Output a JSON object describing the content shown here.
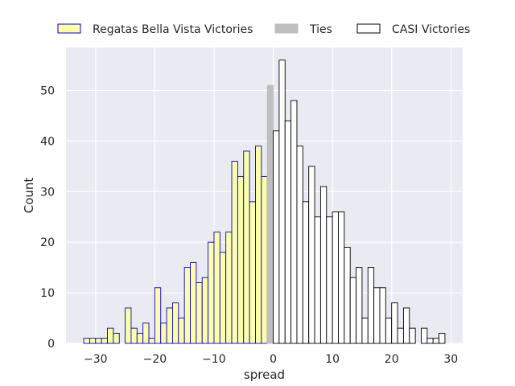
{
  "chart_data": {
    "type": "bar",
    "title": "",
    "xlabel": "spread",
    "ylabel": "Count",
    "xlim": [
      -35,
      32
    ],
    "ylim": [
      0,
      58.5
    ],
    "xticks": [
      -30,
      -20,
      -10,
      0,
      10,
      20,
      30
    ],
    "yticks": [
      0,
      10,
      20,
      30,
      40,
      50
    ],
    "grid": true,
    "bin_width": 1,
    "legend_position": "top-center",
    "series": [
      {
        "name": "Regatas Bella Vista Victories",
        "color": "#ffffaa",
        "edge_color": "#0000cc",
        "bins": [
          {
            "x": -32,
            "count": 1
          },
          {
            "x": -31,
            "count": 1
          },
          {
            "x": -30,
            "count": 1
          },
          {
            "x": -29,
            "count": 1
          },
          {
            "x": -28,
            "count": 3
          },
          {
            "x": -27,
            "count": 2
          },
          {
            "x": -26,
            "count": 0
          },
          {
            "x": -25,
            "count": 7
          },
          {
            "x": -24,
            "count": 3
          },
          {
            "x": -23,
            "count": 2
          },
          {
            "x": -22,
            "count": 4
          },
          {
            "x": -21,
            "count": 1
          },
          {
            "x": -20,
            "count": 11
          },
          {
            "x": -19,
            "count": 4
          },
          {
            "x": -18,
            "count": 7
          },
          {
            "x": -17,
            "count": 8
          },
          {
            "x": -16,
            "count": 5
          },
          {
            "x": -15,
            "count": 15
          },
          {
            "x": -14,
            "count": 16
          },
          {
            "x": -13,
            "count": 12
          },
          {
            "x": -12,
            "count": 13
          },
          {
            "x": -11,
            "count": 20
          },
          {
            "x": -10,
            "count": 22
          },
          {
            "x": -9,
            "count": 18
          },
          {
            "x": -8,
            "count": 22
          },
          {
            "x": -7,
            "count": 36
          },
          {
            "x": -6,
            "count": 33
          },
          {
            "x": -5,
            "count": 38
          },
          {
            "x": -4,
            "count": 28
          },
          {
            "x": -3,
            "count": 39
          },
          {
            "x": -2,
            "count": 33
          }
        ]
      },
      {
        "name": "Ties",
        "color": "#bfbfbf",
        "edge_color": "#bfbfbf",
        "bins": [
          {
            "x": -1,
            "count": 51
          }
        ]
      },
      {
        "name": "CASI Victories",
        "color": "#ffffff",
        "edge_color": "#000000",
        "bins": [
          {
            "x": 0,
            "count": 42
          },
          {
            "x": 1,
            "count": 56
          },
          {
            "x": 2,
            "count": 44
          },
          {
            "x": 3,
            "count": 48
          },
          {
            "x": 4,
            "count": 39
          },
          {
            "x": 5,
            "count": 28
          },
          {
            "x": 6,
            "count": 35
          },
          {
            "x": 7,
            "count": 25
          },
          {
            "x": 8,
            "count": 31
          },
          {
            "x": 9,
            "count": 25
          },
          {
            "x": 10,
            "count": 26
          },
          {
            "x": 11,
            "count": 26
          },
          {
            "x": 12,
            "count": 19
          },
          {
            "x": 13,
            "count": 13
          },
          {
            "x": 14,
            "count": 15
          },
          {
            "x": 15,
            "count": 5
          },
          {
            "x": 16,
            "count": 15
          },
          {
            "x": 17,
            "count": 11
          },
          {
            "x": 18,
            "count": 11
          },
          {
            "x": 19,
            "count": 5
          },
          {
            "x": 20,
            "count": 8
          },
          {
            "x": 21,
            "count": 3
          },
          {
            "x": 22,
            "count": 7
          },
          {
            "x": 23,
            "count": 3
          },
          {
            "x": 24,
            "count": 0
          },
          {
            "x": 25,
            "count": 3
          },
          {
            "x": 26,
            "count": 1
          },
          {
            "x": 27,
            "count": 1
          },
          {
            "x": 28,
            "count": 2
          }
        ]
      }
    ]
  }
}
